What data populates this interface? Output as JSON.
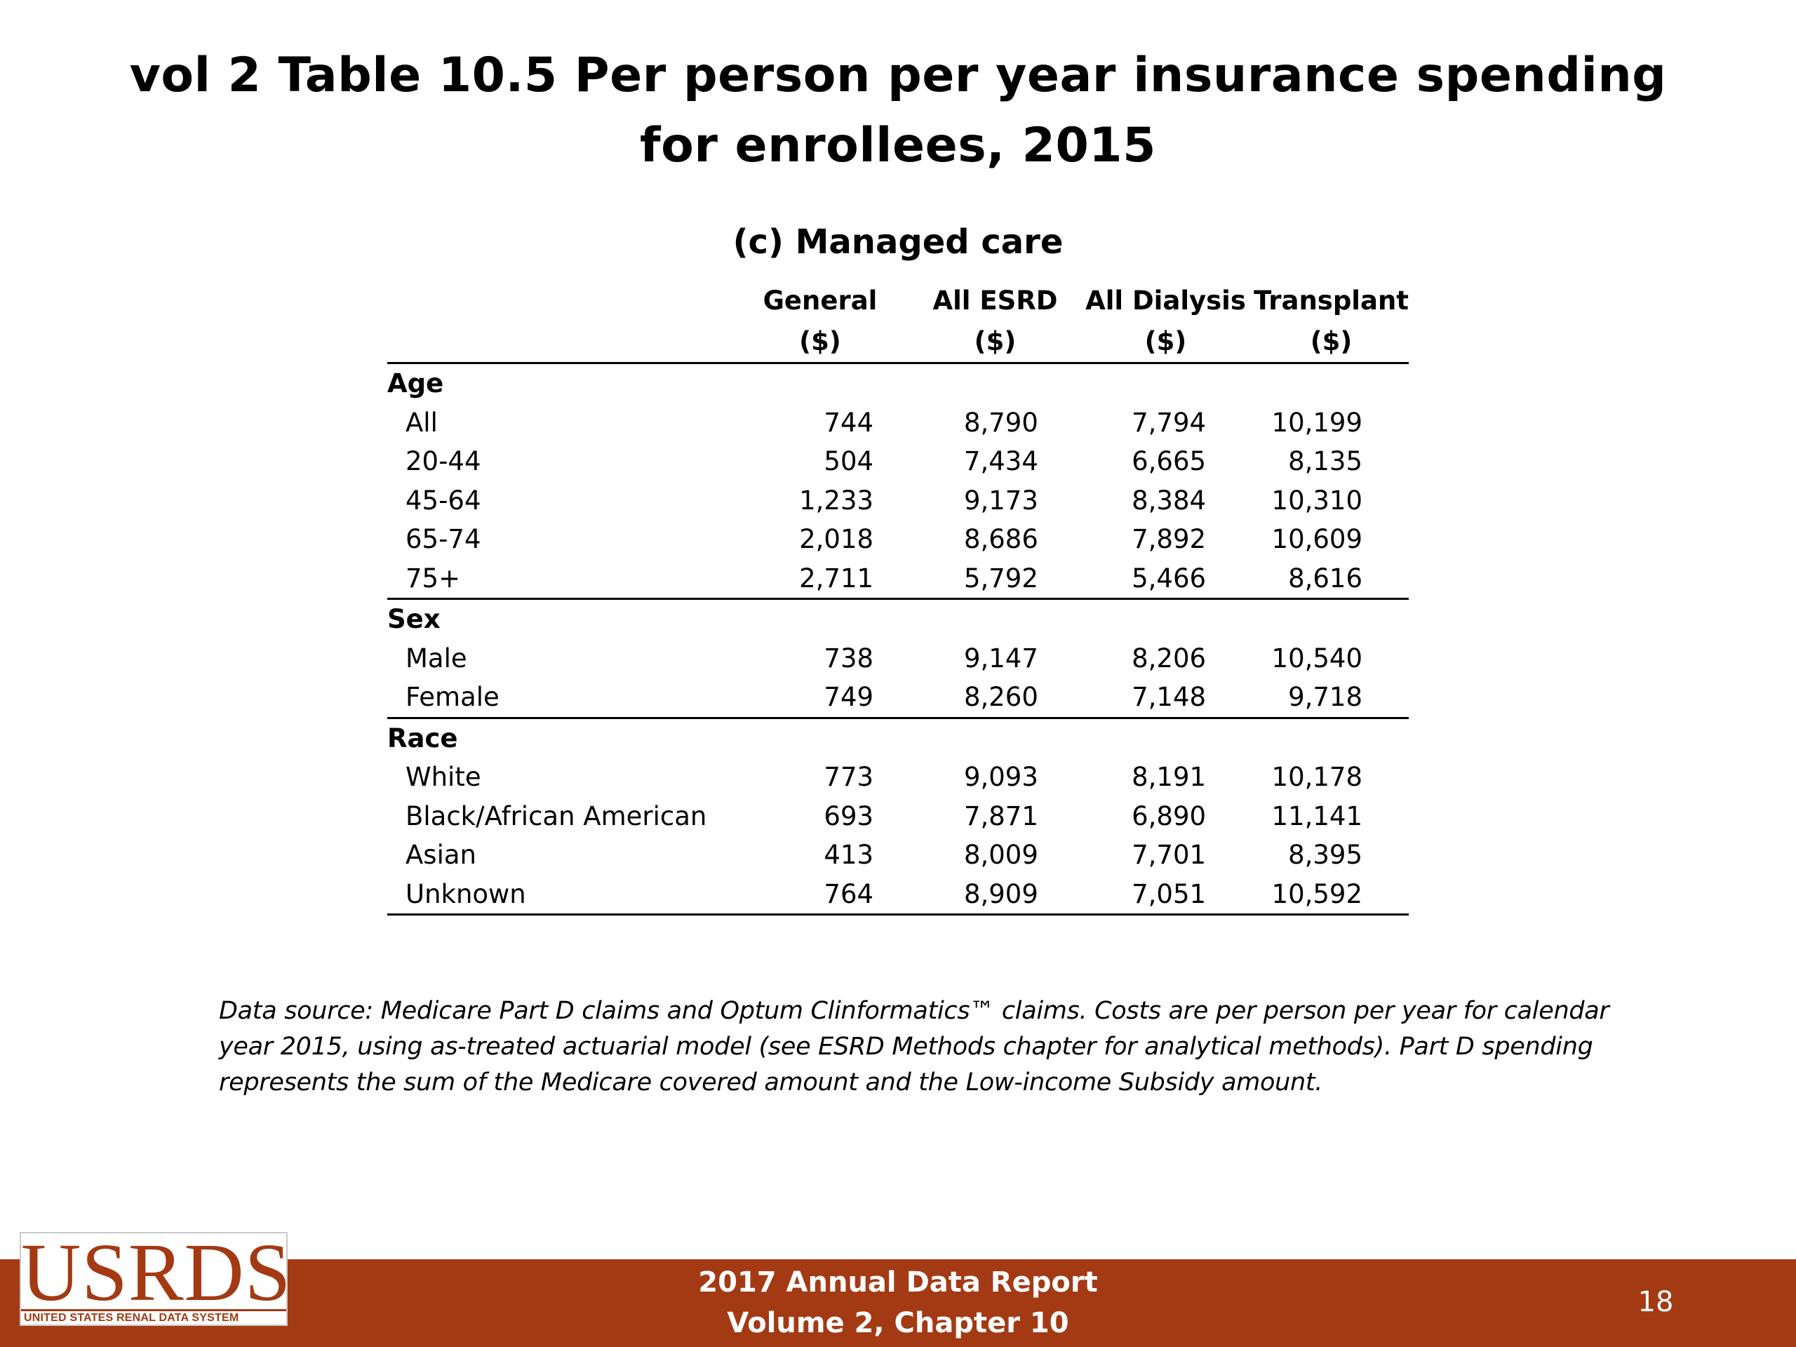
{
  "title": {
    "line1": "vol 2 Table 10.5 Per person per year insurance spending",
    "line2": "for enrollees, 2015"
  },
  "caption": "(c) Managed care",
  "table": {
    "columns": [
      {
        "name": "General",
        "unit": "($)"
      },
      {
        "name": "All ESRD",
        "unit": "($)"
      },
      {
        "name": "All Dialysis",
        "unit": "($)"
      },
      {
        "name": "Transplant",
        "unit": "($)"
      }
    ],
    "groups": [
      {
        "label": "Age",
        "rows": [
          {
            "label": "All",
            "values": [
              "744",
              "8,790",
              "7,794",
              "10,199"
            ]
          },
          {
            "label": "20-44",
            "values": [
              "504",
              "7,434",
              "6,665",
              "8,135"
            ]
          },
          {
            "label": "45-64",
            "values": [
              "1,233",
              "9,173",
              "8,384",
              "10,310"
            ]
          },
          {
            "label": "65-74",
            "values": [
              "2,018",
              "8,686",
              "7,892",
              "10,609"
            ]
          },
          {
            "label": "75+",
            "values": [
              "2,711",
              "5,792",
              "5,466",
              "8,616"
            ]
          }
        ]
      },
      {
        "label": "Sex",
        "rows": [
          {
            "label": "Male",
            "values": [
              "738",
              "9,147",
              "8,206",
              "10,540"
            ]
          },
          {
            "label": "Female",
            "values": [
              "749",
              "8,260",
              "7,148",
              "9,718"
            ]
          }
        ]
      },
      {
        "label": "Race",
        "rows": [
          {
            "label": "White",
            "values": [
              "773",
              "9,093",
              "8,191",
              "10,178"
            ]
          },
          {
            "label": "Black/African American",
            "values": [
              "693",
              "7,871",
              "6,890",
              "11,141"
            ]
          },
          {
            "label": "Asian",
            "values": [
              "413",
              "8,009",
              "7,701",
              "8,395"
            ]
          },
          {
            "label": "Unknown",
            "values": [
              "764",
              "8,909",
              "7,051",
              "10,592"
            ]
          }
        ]
      }
    ]
  },
  "footnote": "Data source: Medicare Part D claims and Optum Clinformatics™ claims. Costs are per person per year for calendar year 2015, using as-treated actuarial model (see ESRD Methods chapter for analytical methods). Part D spending represents the sum of the Medicare covered amount and the Low-income Subsidy amount.",
  "footer": {
    "line1": "2017 Annual Data Report",
    "line2": "Volume 2, Chapter 10",
    "page_number": "18"
  },
  "logo": {
    "wordmark": "USRDS",
    "subtitle": "UNITED STATES RENAL DATA SYSTEM"
  },
  "colors": {
    "footer_bar": "#a33a14",
    "logo": "#a33a14",
    "text": "#000000"
  }
}
